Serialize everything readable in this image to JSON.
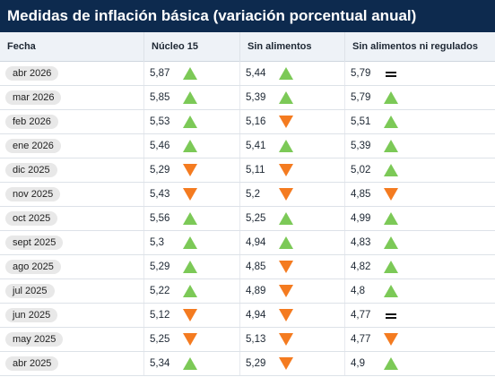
{
  "header": {
    "title": "Medidas de inflación básica (variación porcentual anual)"
  },
  "table": {
    "columns": [
      "Fecha",
      "Núcleo 15",
      "Sin alimentos",
      "Sin alimentos ni regulados"
    ],
    "rows": [
      {
        "date": "abr 2026",
        "cells": [
          {
            "value": "5,87",
            "trend": "up"
          },
          {
            "value": "5,44",
            "trend": "up"
          },
          {
            "value": "5,79",
            "trend": "equal"
          }
        ]
      },
      {
        "date": "mar 2026",
        "cells": [
          {
            "value": "5,85",
            "trend": "up"
          },
          {
            "value": "5,39",
            "trend": "up"
          },
          {
            "value": "5,79",
            "trend": "up"
          }
        ]
      },
      {
        "date": "feb 2026",
        "cells": [
          {
            "value": "5,53",
            "trend": "up"
          },
          {
            "value": "5,16",
            "trend": "down"
          },
          {
            "value": "5,51",
            "trend": "up"
          }
        ]
      },
      {
        "date": "ene 2026",
        "cells": [
          {
            "value": "5,46",
            "trend": "up"
          },
          {
            "value": "5,41",
            "trend": "up"
          },
          {
            "value": "5,39",
            "trend": "up"
          }
        ]
      },
      {
        "date": "dic 2025",
        "cells": [
          {
            "value": "5,29",
            "trend": "down"
          },
          {
            "value": "5,11",
            "trend": "down"
          },
          {
            "value": "5,02",
            "trend": "up"
          }
        ]
      },
      {
        "date": "nov 2025",
        "cells": [
          {
            "value": "5,43",
            "trend": "down"
          },
          {
            "value": "5,2",
            "trend": "down"
          },
          {
            "value": "4,85",
            "trend": "down"
          }
        ]
      },
      {
        "date": "oct 2025",
        "cells": [
          {
            "value": "5,56",
            "trend": "up"
          },
          {
            "value": "5,25",
            "trend": "up"
          },
          {
            "value": "4,99",
            "trend": "up"
          }
        ]
      },
      {
        "date": "sept 2025",
        "cells": [
          {
            "value": "5,3",
            "trend": "up"
          },
          {
            "value": "4,94",
            "trend": "up"
          },
          {
            "value": "4,83",
            "trend": "up"
          }
        ]
      },
      {
        "date": "ago 2025",
        "cells": [
          {
            "value": "5,29",
            "trend": "up"
          },
          {
            "value": "4,85",
            "trend": "down"
          },
          {
            "value": "4,82",
            "trend": "up"
          }
        ]
      },
      {
        "date": "jul 2025",
        "cells": [
          {
            "value": "5,22",
            "trend": "up"
          },
          {
            "value": "4,89",
            "trend": "down"
          },
          {
            "value": "4,8",
            "trend": "up"
          }
        ]
      },
      {
        "date": "jun 2025",
        "cells": [
          {
            "value": "5,12",
            "trend": "down"
          },
          {
            "value": "4,94",
            "trend": "down"
          },
          {
            "value": "4,77",
            "trend": "equal"
          }
        ]
      },
      {
        "date": "may 2025",
        "cells": [
          {
            "value": "5,25",
            "trend": "down"
          },
          {
            "value": "5,13",
            "trend": "down"
          },
          {
            "value": "4,77",
            "trend": "down"
          }
        ]
      },
      {
        "date": "abr 2025",
        "cells": [
          {
            "value": "5,34",
            "trend": "up"
          },
          {
            "value": "5,29",
            "trend": "down"
          },
          {
            "value": "4,9",
            "trend": "up"
          }
        ]
      }
    ]
  }
}
